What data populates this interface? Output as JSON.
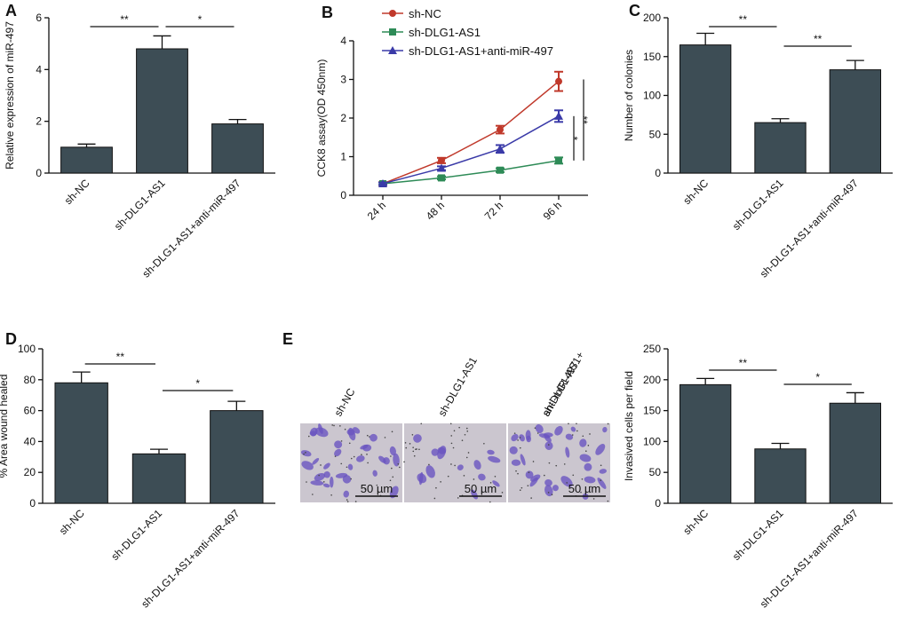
{
  "chart_data": [
    {
      "panel": "A",
      "type": "bar",
      "y_label": "Relative expression of miR-497",
      "categories": [
        "sh-NC",
        "sh-DLG1-AS1",
        "sh-DLG1-AS1+anti-miR-497"
      ],
      "values": [
        1.0,
        4.8,
        1.9
      ],
      "errors": [
        0.12,
        0.5,
        0.17
      ],
      "color": "#3d4d55",
      "ylim": [
        0,
        6
      ],
      "yticks": [
        0,
        2,
        4,
        6
      ],
      "annotations": [
        "**",
        "*"
      ]
    },
    {
      "panel": "B",
      "type": "line",
      "y_label": "CCK8 assay(OD 450nm)",
      "categories": [
        "24 h",
        "48 h",
        "72 h",
        "96 h"
      ],
      "series": [
        {
          "name": "sh-NC",
          "color": "#c0392b",
          "marker": "circle",
          "values": [
            0.3,
            0.9,
            1.7,
            2.95
          ],
          "errors": [
            0.04,
            0.07,
            0.1,
            0.25
          ]
        },
        {
          "name": "sh-DLG1-AS1",
          "color": "#2e8b57",
          "marker": "square",
          "values": [
            0.3,
            0.45,
            0.65,
            0.9
          ],
          "errors": [
            0.03,
            0.04,
            0.05,
            0.08
          ]
        },
        {
          "name": "sh-DLG1-AS1+anti-miR-497",
          "color": "#3a3aa8",
          "marker": "triangle",
          "values": [
            0.3,
            0.7,
            1.2,
            2.05
          ],
          "errors": [
            0.03,
            0.05,
            0.1,
            0.15
          ]
        }
      ],
      "ylim": [
        0,
        4
      ],
      "yticks": [
        0,
        1,
        2,
        3,
        4
      ],
      "annotations": [
        "*",
        "**"
      ]
    },
    {
      "panel": "C",
      "type": "bar",
      "y_label": "Number of colonies",
      "categories": [
        "sh-NC",
        "sh-DLG1-AS1",
        "sh-DLG1-AS1+anti-miR-497"
      ],
      "values": [
        165,
        65,
        133
      ],
      "errors": [
        15,
        5,
        12
      ],
      "color": "#3d4d55",
      "ylim": [
        0,
        200
      ],
      "yticks": [
        0,
        50,
        100,
        150,
        200
      ],
      "annotations": [
        "**",
        "**"
      ]
    },
    {
      "panel": "D",
      "type": "bar",
      "y_label": "% Area wound healed",
      "categories": [
        "sh-NC",
        "sh-DLG1-AS1",
        "sh-DLG1-AS1+anti-miR-497"
      ],
      "values": [
        78,
        32,
        60
      ],
      "errors": [
        7,
        3,
        6
      ],
      "color": "#3d4d55",
      "ylim": [
        0,
        100
      ],
      "yticks": [
        0,
        20,
        40,
        60,
        80,
        100
      ],
      "annotations": [
        "**",
        "*"
      ]
    },
    {
      "type": "bar",
      "y_label": "Invasived cells per field",
      "categories": [
        "sh-NC",
        "sh-DLG1-AS1",
        "sh-DLG1-AS1+anti-miR-497"
      ],
      "values": [
        192,
        88,
        162
      ],
      "errors": [
        10,
        9,
        17
      ],
      "color": "#3d4d55",
      "ylim": [
        0,
        250
      ],
      "yticks": [
        0,
        50,
        100,
        150,
        200,
        250
      ],
      "annotations": [
        "**",
        "*"
      ]
    }
  ],
  "micrographs": {
    "panel": "E",
    "labels": [
      [
        "sh-NC"
      ],
      [
        "sh-DLG1-AS1"
      ],
      [
        "sh-DLG1-AS1+",
        "anti-miR-497"
      ]
    ],
    "scale_labels": [
      "50 µm",
      "50 µm",
      "50 µm"
    ]
  }
}
